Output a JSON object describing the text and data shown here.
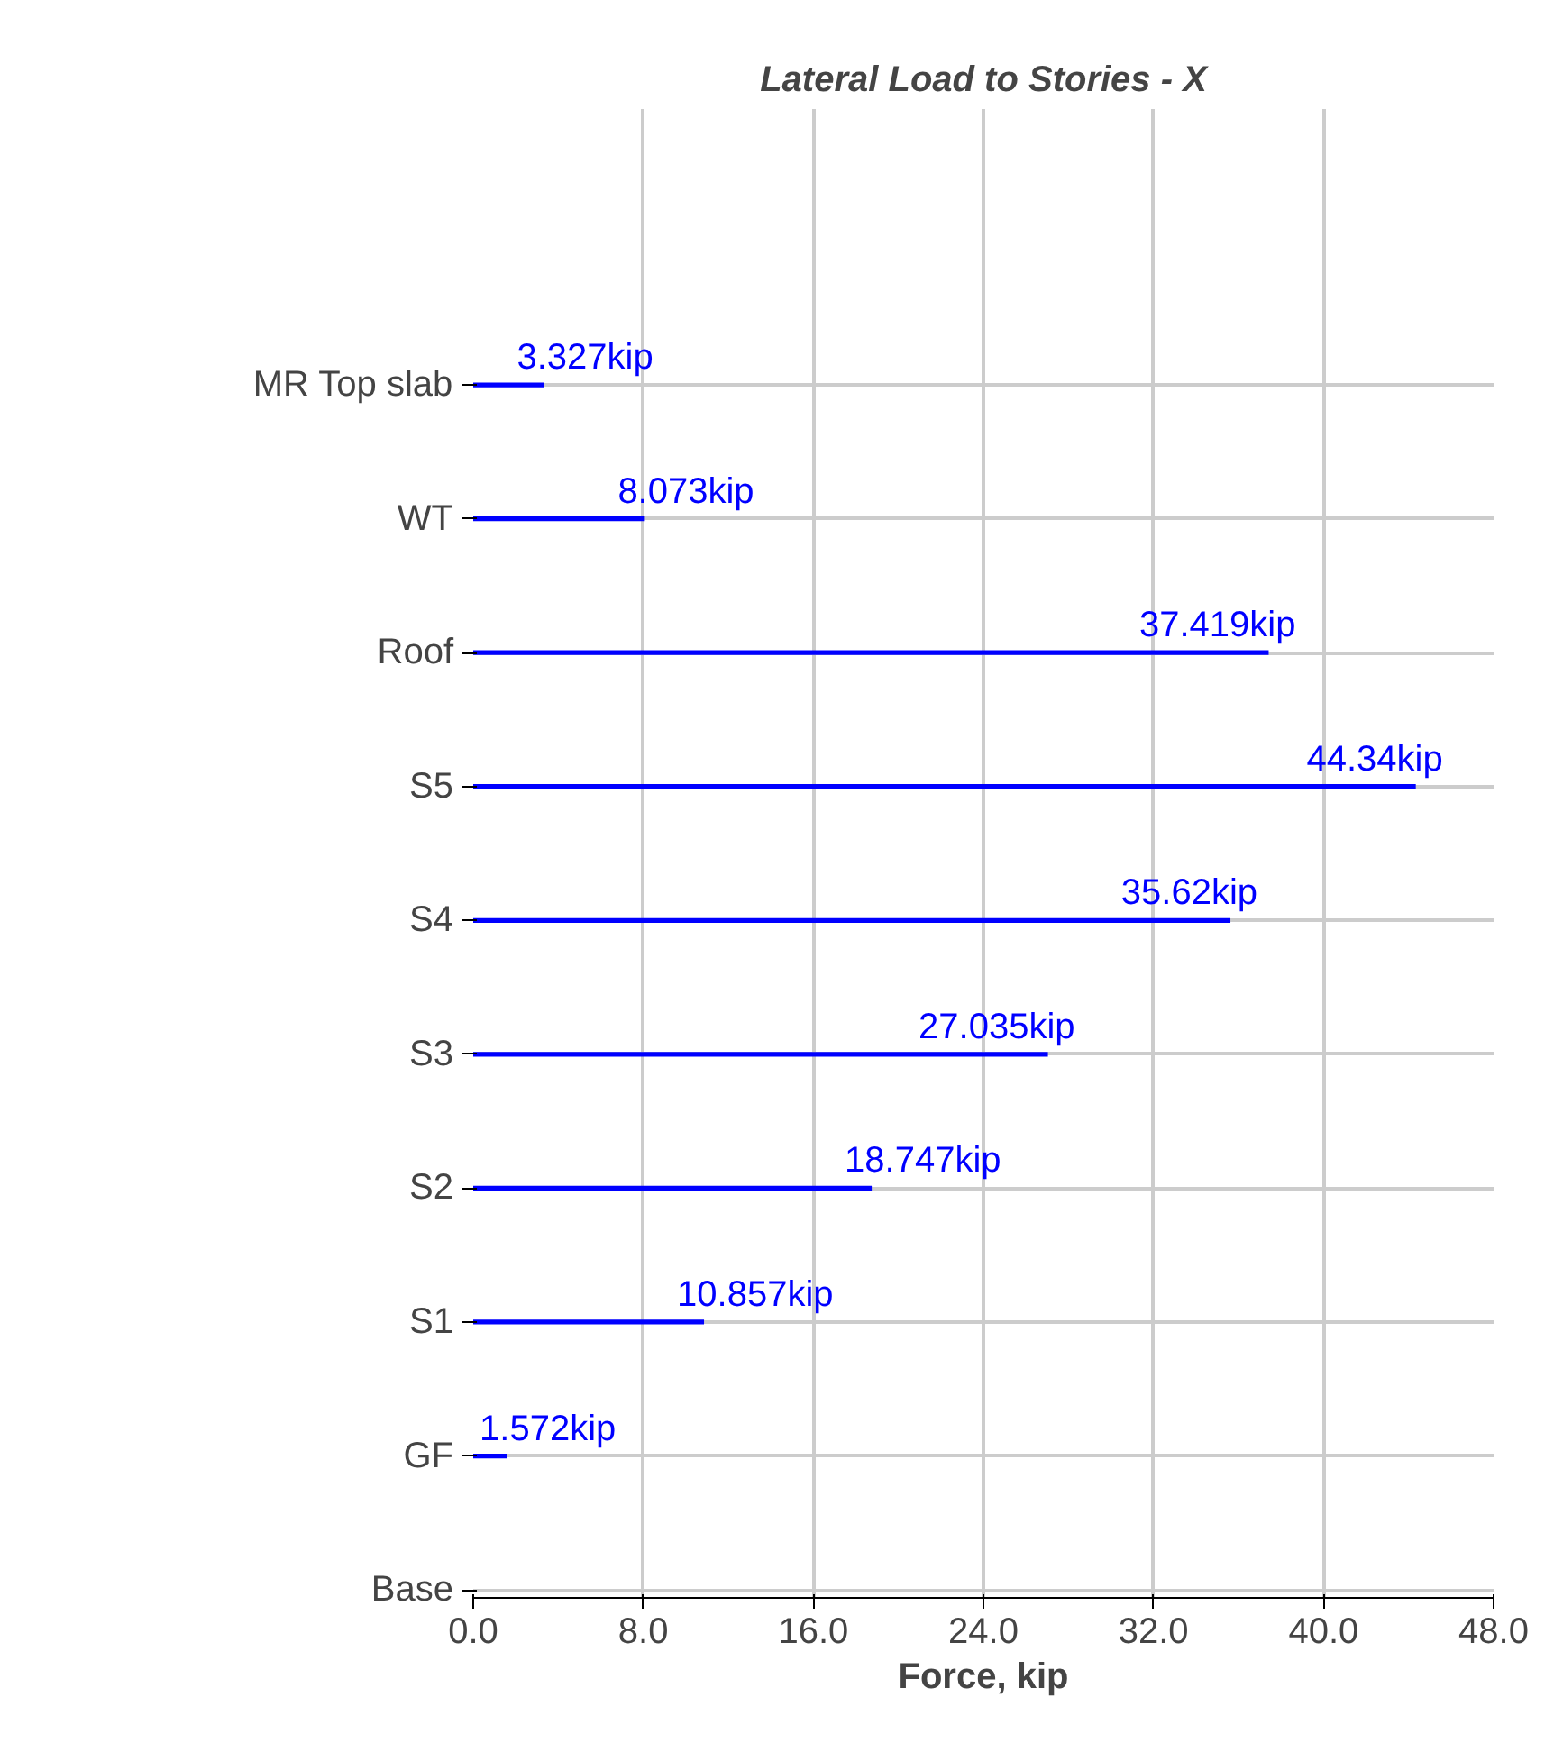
{
  "chart_data": {
    "type": "bar",
    "orientation": "horizontal",
    "title": "Lateral Load to Stories - X",
    "xlabel": "Force, kip",
    "categories": [
      "MR Top slab",
      "WT",
      "Roof",
      "S5",
      "S4",
      "S3",
      "S2",
      "S1",
      "GF",
      "Base"
    ],
    "values": [
      3.327,
      8.073,
      37.419,
      44.34,
      35.62,
      27.035,
      18.747,
      10.857,
      1.572,
      null
    ],
    "value_labels": [
      "3.327kip",
      "8.073kip",
      "37.419kip",
      "44.34kip",
      "35.62kip",
      "27.035kip",
      "18.747kip",
      "10.857kip",
      "1.572kip",
      null
    ],
    "color": "#0000ff",
    "xlim": [
      0,
      48
    ],
    "xticks": [
      {
        "value": 0,
        "label": "0.0"
      },
      {
        "value": 8,
        "label": "8.0"
      },
      {
        "value": 16,
        "label": "16.0"
      },
      {
        "value": 24,
        "label": "24.0"
      },
      {
        "value": 32,
        "label": "32.0"
      },
      {
        "value": 40,
        "label": "40.0"
      },
      {
        "value": 48,
        "label": "48.0"
      }
    ],
    "grid": true
  }
}
